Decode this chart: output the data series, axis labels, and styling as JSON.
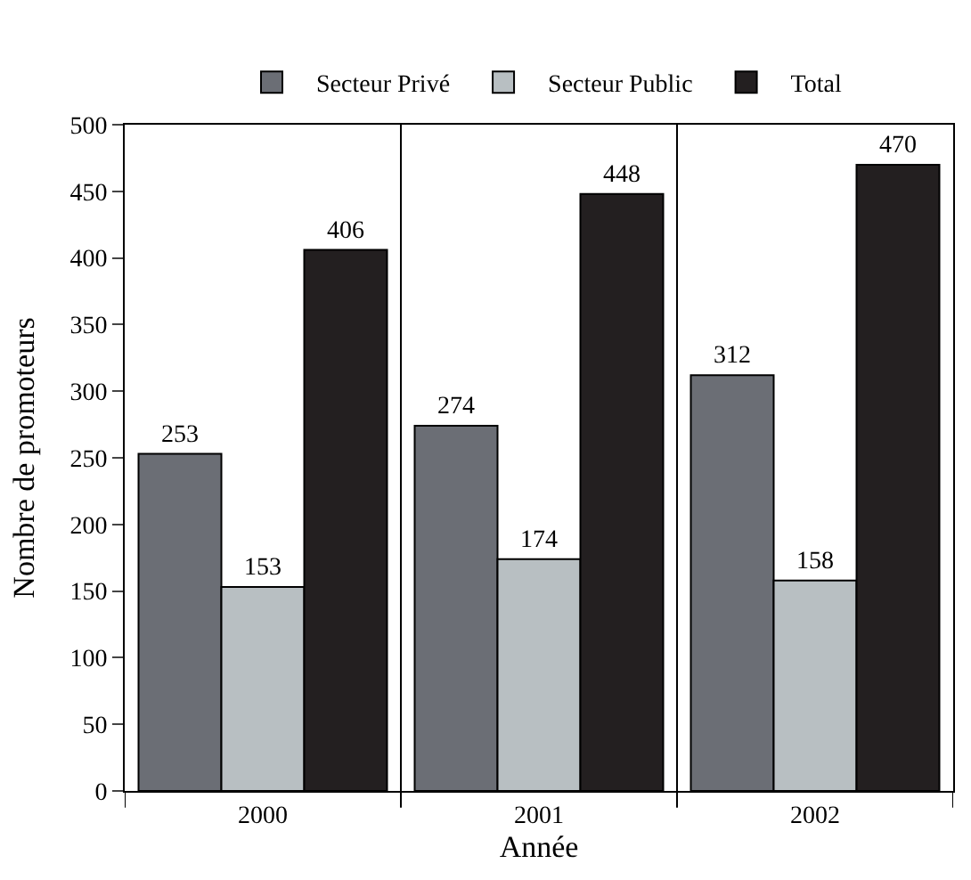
{
  "chart_data": {
    "type": "bar",
    "xlabel": "Année",
    "ylabel": "Nombre de promoteurs",
    "categories": [
      "2000",
      "2001",
      "2002"
    ],
    "series": [
      {
        "name": "Secteur Privé",
        "color": "#6b6e75",
        "values": [
          253,
          274,
          312
        ]
      },
      {
        "name": "Secteur Public",
        "color": "#b8bfc2",
        "values": [
          153,
          174,
          158
        ]
      },
      {
        "name": "Total",
        "color": "#231f20",
        "values": [
          406,
          448,
          470
        ]
      }
    ],
    "ylim": [
      0,
      500
    ],
    "yticks": [
      0,
      50,
      100,
      150,
      200,
      250,
      300,
      350,
      400,
      450,
      500
    ],
    "grid": "x",
    "legend": "top",
    "data_labels": true
  }
}
